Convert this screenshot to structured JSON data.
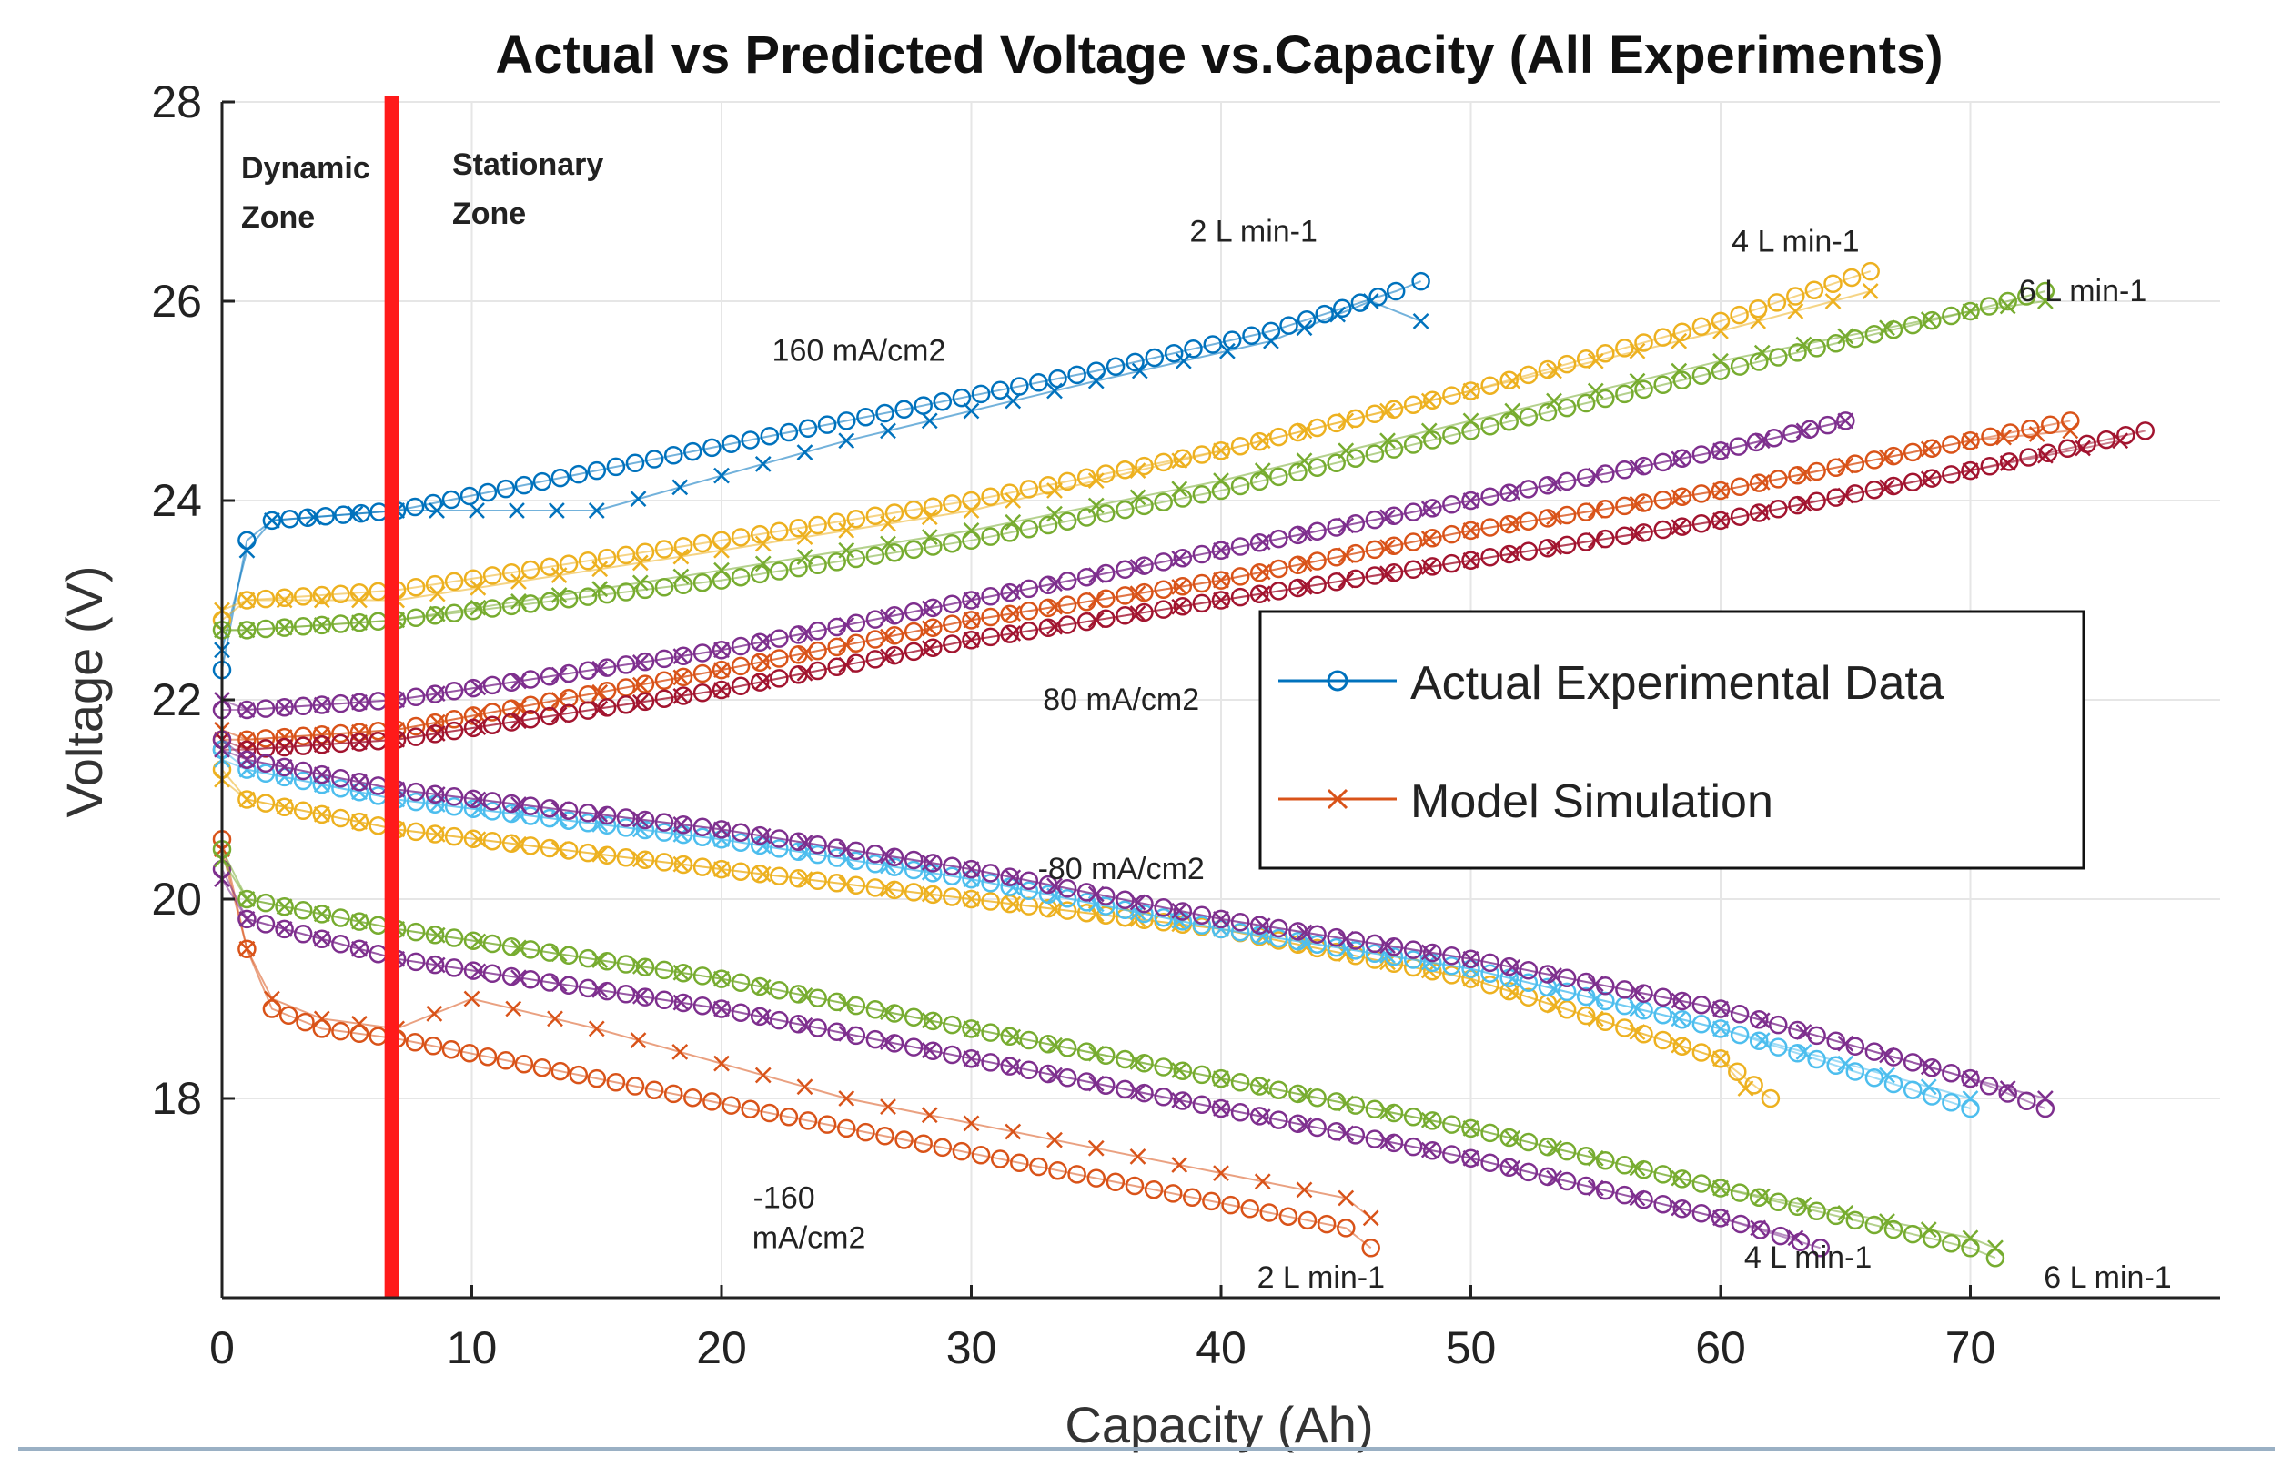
{
  "chart_data": {
    "type": "scatter",
    "title": "Actual vs Predicted Voltage vs.Capacity (All Experiments)",
    "xlabel": "Capacity (Ah)",
    "ylabel": "Voltage (V)",
    "xlim": [
      0,
      80
    ],
    "ylim": [
      16,
      28
    ],
    "xticks": [
      0,
      10,
      20,
      30,
      40,
      50,
      60,
      70
    ],
    "yticks": [
      18,
      20,
      22,
      24,
      26,
      28
    ],
    "grid": true,
    "zone_boundary_x": 6.8,
    "zones": {
      "dynamic": [
        "Dynamic",
        "Zone"
      ],
      "stationary": [
        "Stationary",
        "Zone"
      ]
    },
    "legend": {
      "position": "center-right",
      "entries": [
        {
          "label": "Actual Experimental Data",
          "marker": "o",
          "color": "#0072BD"
        },
        {
          "label": "Model Simulation",
          "marker": "x",
          "color": "#D95319"
        }
      ]
    },
    "annotations": [
      {
        "text": "160 mA/cm2",
        "x": 25.5,
        "y": 25.4
      },
      {
        "text": "80 mA/cm2",
        "x": 36,
        "y": 21.9
      },
      {
        "text": "-80 mA/cm2",
        "x": 36,
        "y": 20.2
      },
      {
        "text": "-160",
        "x": 22.5,
        "y": 16.9
      },
      {
        "text": "mA/cm2",
        "x": 23.5,
        "y": 16.5
      },
      {
        "text": "2 L min-1",
        "x": 41.3,
        "y": 26.6
      },
      {
        "text": "4 L min-1",
        "x": 63,
        "y": 26.5
      },
      {
        "text": "6 L min-1",
        "x": 74.5,
        "y": 26.0
      },
      {
        "text": "2 L min-1",
        "x": 44,
        "y": 16.1
      },
      {
        "text": "4 L min-1",
        "x": 63.5,
        "y": 16.3
      },
      {
        "text": "6 L min-1",
        "x": 75.5,
        "y": 16.1
      }
    ],
    "series": [
      {
        "name": "Charge 160 mA/cm2, 2 L min-1",
        "color": "#0072BD",
        "actual": [
          [
            0,
            22.3
          ],
          [
            1,
            23.6
          ],
          [
            2,
            23.8
          ],
          [
            7,
            23.9
          ],
          [
            15,
            24.3
          ],
          [
            25,
            24.8
          ],
          [
            35,
            25.3
          ],
          [
            42,
            25.7
          ],
          [
            47,
            26.1
          ],
          [
            48,
            26.2
          ]
        ],
        "model": [
          [
            0,
            22.5
          ],
          [
            1,
            23.5
          ],
          [
            2,
            23.8
          ],
          [
            7,
            23.9
          ],
          [
            15,
            23.9
          ],
          [
            25,
            24.6
          ],
          [
            35,
            25.2
          ],
          [
            42,
            25.6
          ],
          [
            46,
            26.0
          ],
          [
            48,
            25.8
          ]
        ]
      },
      {
        "name": "Charge 160 mA/cm2, 4 L min-1",
        "color": "#EDB120",
        "actual": [
          [
            0,
            22.8
          ],
          [
            1,
            23.0
          ],
          [
            7,
            23.1
          ],
          [
            20,
            23.6
          ],
          [
            30,
            24.0
          ],
          [
            40,
            24.5
          ],
          [
            50,
            25.1
          ],
          [
            60,
            25.8
          ],
          [
            66,
            26.3
          ]
        ],
        "model": [
          [
            0,
            22.9
          ],
          [
            1,
            23.0
          ],
          [
            7,
            23.0
          ],
          [
            20,
            23.5
          ],
          [
            30,
            23.9
          ],
          [
            40,
            24.5
          ],
          [
            50,
            25.1
          ],
          [
            60,
            25.7
          ],
          [
            66,
            26.1
          ]
        ]
      },
      {
        "name": "Charge 160 mA/cm2, 6 L min-1",
        "color": "#77AC30",
        "actual": [
          [
            0,
            22.7
          ],
          [
            1,
            22.7
          ],
          [
            7,
            22.8
          ],
          [
            20,
            23.2
          ],
          [
            30,
            23.6
          ],
          [
            40,
            24.1
          ],
          [
            50,
            24.7
          ],
          [
            60,
            25.3
          ],
          [
            70,
            25.9
          ],
          [
            73,
            26.1
          ]
        ],
        "model": [
          [
            0,
            22.7
          ],
          [
            1,
            22.7
          ],
          [
            7,
            22.8
          ],
          [
            20,
            23.3
          ],
          [
            30,
            23.7
          ],
          [
            40,
            24.2
          ],
          [
            50,
            24.8
          ],
          [
            60,
            25.4
          ],
          [
            70,
            25.9
          ],
          [
            73,
            26.0
          ]
        ]
      },
      {
        "name": "Charge 80 mA/cm2, 2 L min-1",
        "color": "#7E2F8E",
        "actual": [
          [
            0,
            21.9
          ],
          [
            1,
            21.9
          ],
          [
            7,
            22.0
          ],
          [
            20,
            22.5
          ],
          [
            30,
            23.0
          ],
          [
            40,
            23.5
          ],
          [
            50,
            24.0
          ],
          [
            60,
            24.5
          ],
          [
            65,
            24.8
          ]
        ],
        "model": [
          [
            0,
            22.0
          ],
          [
            1,
            21.9
          ],
          [
            7,
            22.0
          ],
          [
            20,
            22.5
          ],
          [
            30,
            23.0
          ],
          [
            40,
            23.5
          ],
          [
            50,
            24.0
          ],
          [
            60,
            24.5
          ],
          [
            65,
            24.8
          ]
        ]
      },
      {
        "name": "Charge 80 mA/cm2, 4 L min-1",
        "color": "#D95319",
        "actual": [
          [
            0,
            21.6
          ],
          [
            1,
            21.6
          ],
          [
            7,
            21.7
          ],
          [
            20,
            22.3
          ],
          [
            30,
            22.8
          ],
          [
            40,
            23.2
          ],
          [
            50,
            23.7
          ],
          [
            60,
            24.1
          ],
          [
            70,
            24.6
          ],
          [
            74,
            24.8
          ]
        ],
        "model": [
          [
            0,
            21.7
          ],
          [
            1,
            21.6
          ],
          [
            7,
            21.7
          ],
          [
            20,
            22.3
          ],
          [
            30,
            22.8
          ],
          [
            40,
            23.2
          ],
          [
            50,
            23.7
          ],
          [
            60,
            24.1
          ],
          [
            70,
            24.6
          ],
          [
            74,
            24.7
          ]
        ]
      },
      {
        "name": "Charge 80 mA/cm2, 6 L min-1",
        "color": "#A2142F",
        "actual": [
          [
            0,
            21.5
          ],
          [
            1,
            21.5
          ],
          [
            7,
            21.6
          ],
          [
            20,
            22.1
          ],
          [
            30,
            22.6
          ],
          [
            40,
            23.0
          ],
          [
            50,
            23.4
          ],
          [
            60,
            23.8
          ],
          [
            70,
            24.3
          ],
          [
            77,
            24.7
          ]
        ],
        "model": [
          [
            0,
            21.6
          ],
          [
            1,
            21.5
          ],
          [
            7,
            21.6
          ],
          [
            20,
            22.1
          ],
          [
            30,
            22.6
          ],
          [
            40,
            23.0
          ],
          [
            50,
            23.4
          ],
          [
            60,
            23.8
          ],
          [
            70,
            24.3
          ],
          [
            76,
            24.6
          ]
        ]
      },
      {
        "name": "Discharge -80 mA/cm2, 2 L min-1",
        "color": "#EDB120",
        "actual": [
          [
            0,
            21.3
          ],
          [
            1,
            21.0
          ],
          [
            7,
            20.7
          ],
          [
            20,
            20.3
          ],
          [
            30,
            20.0
          ],
          [
            40,
            19.7
          ],
          [
            50,
            19.2
          ],
          [
            60,
            18.4
          ],
          [
            62,
            18.0
          ]
        ],
        "model": [
          [
            0,
            21.2
          ],
          [
            1,
            21.0
          ],
          [
            7,
            20.7
          ],
          [
            20,
            20.3
          ],
          [
            30,
            20.0
          ],
          [
            40,
            19.7
          ],
          [
            50,
            19.2
          ],
          [
            60,
            18.4
          ],
          [
            61,
            18.1
          ]
        ]
      },
      {
        "name": "Discharge -80 mA/cm2, 4 L min-1",
        "color": "#4DBEEE",
        "actual": [
          [
            0,
            21.5
          ],
          [
            1,
            21.3
          ],
          [
            7,
            21.0
          ],
          [
            20,
            20.6
          ],
          [
            30,
            20.2
          ],
          [
            40,
            19.7
          ],
          [
            50,
            19.3
          ],
          [
            60,
            18.7
          ],
          [
            70,
            17.9
          ]
        ],
        "model": [
          [
            0,
            21.4
          ],
          [
            1,
            21.3
          ],
          [
            7,
            21.0
          ],
          [
            20,
            20.6
          ],
          [
            30,
            20.2
          ],
          [
            40,
            19.7
          ],
          [
            50,
            19.3
          ],
          [
            60,
            18.7
          ],
          [
            70,
            18.0
          ]
        ]
      },
      {
        "name": "Discharge -80 mA/cm2, 6 L min-1",
        "color": "#7E2F8E",
        "actual": [
          [
            0,
            21.6
          ],
          [
            1,
            21.4
          ],
          [
            7,
            21.1
          ],
          [
            20,
            20.7
          ],
          [
            30,
            20.3
          ],
          [
            40,
            19.8
          ],
          [
            50,
            19.4
          ],
          [
            60,
            18.9
          ],
          [
            70,
            18.2
          ],
          [
            73,
            17.9
          ]
        ],
        "model": [
          [
            0,
            21.5
          ],
          [
            1,
            21.4
          ],
          [
            7,
            21.1
          ],
          [
            20,
            20.7
          ],
          [
            30,
            20.3
          ],
          [
            40,
            19.8
          ],
          [
            50,
            19.4
          ],
          [
            60,
            18.9
          ],
          [
            70,
            18.2
          ],
          [
            73,
            18.0
          ]
        ]
      },
      {
        "name": "Discharge -160 mA/cm2, 2 L min-1",
        "color": "#D95319",
        "actual": [
          [
            0,
            20.6
          ],
          [
            1,
            19.5
          ],
          [
            2,
            18.9
          ],
          [
            4,
            18.7
          ],
          [
            7,
            18.6
          ],
          [
            15,
            18.2
          ],
          [
            25,
            17.7
          ],
          [
            35,
            17.2
          ],
          [
            45,
            16.7
          ],
          [
            46,
            16.5
          ]
        ],
        "model": [
          [
            0,
            20.5
          ],
          [
            1,
            19.5
          ],
          [
            2,
            19.0
          ],
          [
            4,
            18.8
          ],
          [
            7,
            18.7
          ],
          [
            10,
            19.0
          ],
          [
            15,
            18.7
          ],
          [
            25,
            18.0
          ],
          [
            35,
            17.5
          ],
          [
            45,
            17.0
          ],
          [
            46,
            16.8
          ]
        ]
      },
      {
        "name": "Discharge -160 mA/cm2, 4 L min-1",
        "color": "#7E2F8E",
        "actual": [
          [
            0,
            20.3
          ],
          [
            1,
            19.8
          ],
          [
            7,
            19.4
          ],
          [
            20,
            18.9
          ],
          [
            30,
            18.4
          ],
          [
            40,
            17.9
          ],
          [
            50,
            17.4
          ],
          [
            60,
            16.8
          ],
          [
            64,
            16.5
          ]
        ],
        "model": [
          [
            0,
            20.2
          ],
          [
            1,
            19.8
          ],
          [
            7,
            19.4
          ],
          [
            20,
            18.9
          ],
          [
            30,
            18.4
          ],
          [
            40,
            17.9
          ],
          [
            50,
            17.4
          ],
          [
            60,
            16.8
          ],
          [
            63,
            16.6
          ]
        ]
      },
      {
        "name": "Discharge -160 mA/cm2, 6 L min-1",
        "color": "#77AC30",
        "actual": [
          [
            0,
            20.5
          ],
          [
            1,
            20.0
          ],
          [
            7,
            19.7
          ],
          [
            20,
            19.2
          ],
          [
            30,
            18.7
          ],
          [
            40,
            18.2
          ],
          [
            50,
            17.7
          ],
          [
            60,
            17.1
          ],
          [
            70,
            16.5
          ],
          [
            71,
            16.4
          ]
        ],
        "model": [
          [
            0,
            20.4
          ],
          [
            1,
            20.0
          ],
          [
            7,
            19.7
          ],
          [
            20,
            19.2
          ],
          [
            30,
            18.7
          ],
          [
            40,
            18.2
          ],
          [
            50,
            17.7
          ],
          [
            60,
            17.1
          ],
          [
            70,
            16.6
          ],
          [
            71,
            16.5
          ]
        ]
      }
    ]
  }
}
